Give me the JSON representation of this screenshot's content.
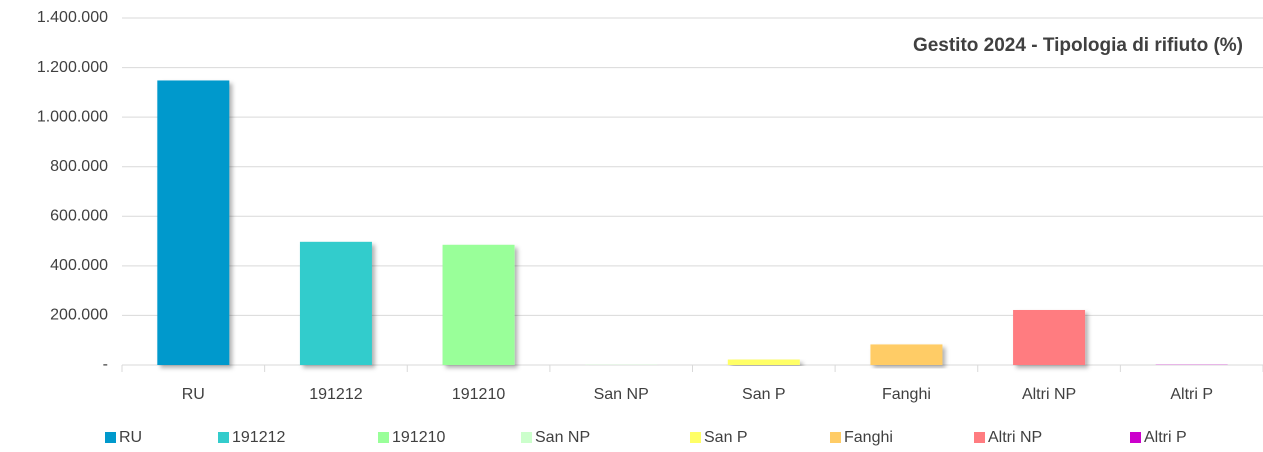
{
  "chart_data": {
    "type": "bar",
    "title": "Gestito 2024 - Tipologia di rifiuto (%)",
    "categories": [
      "RU",
      "191212",
      "191210",
      "San NP",
      "San P",
      "Fanghi",
      "Altri NP",
      "Altri P"
    ],
    "values": [
      1148000,
      497000,
      485000,
      1000,
      22000,
      83000,
      222000,
      1000
    ],
    "colors": [
      "#0099cc",
      "#33cccc",
      "#99ff99",
      "#ccffcc",
      "#ffff66",
      "#ffcc66",
      "#ff7c80",
      "#cc00cc"
    ],
    "ylim": [
      0,
      1400000
    ],
    "yticks": [
      {
        "value": 0,
        "label": "-"
      },
      {
        "value": 200000,
        "label": "200.000"
      },
      {
        "value": 400000,
        "label": "400.000"
      },
      {
        "value": 600000,
        "label": "600.000"
      },
      {
        "value": 800000,
        "label": "800.000"
      },
      {
        "value": 1000000,
        "label": "1.000.000"
      },
      {
        "value": 1200000,
        "label": "1.200.000"
      },
      {
        "value": 1400000,
        "label": "1.400.000"
      }
    ],
    "grid": true,
    "legend": "bottom"
  }
}
